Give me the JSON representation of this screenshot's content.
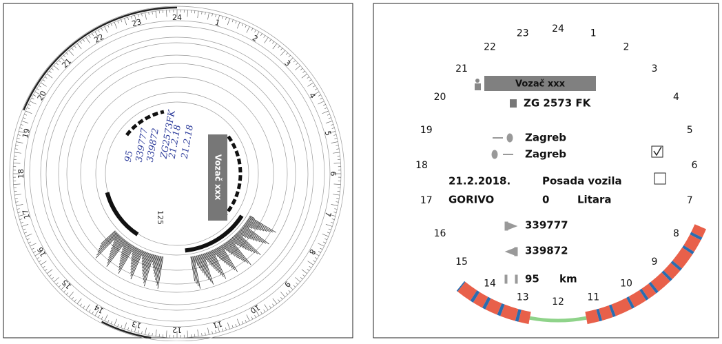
{
  "left_disk": {
    "hours": [
      "1",
      "2",
      "3",
      "4",
      "5",
      "6",
      "7",
      "8",
      "9",
      "10",
      "11",
      "12",
      "13",
      "14",
      "15",
      "16",
      "17",
      "18",
      "19",
      "20",
      "21",
      "22",
      "23",
      "24"
    ],
    "driver": "Vozač xxx",
    "speed_mark": "125",
    "notes": [
      "339872",
      "339777",
      "95",
      "21.2.18",
      "21.2.18",
      "ZG2573FK"
    ]
  },
  "right_clock": {
    "hours": [
      "1",
      "2",
      "3",
      "4",
      "5",
      "6",
      "7",
      "8",
      "9",
      "10",
      "11",
      "12",
      "13",
      "14",
      "15",
      "16",
      "17",
      "18",
      "19",
      "20",
      "21",
      "22",
      "23",
      "24"
    ],
    "driver": "Vozač xxx",
    "plate": "ZG 2573 FK",
    "start_place": "Zagreb",
    "end_place": "Zagreb",
    "date": "21.2.2018.",
    "crew_label": "Posada vozila",
    "fuel_label": "GORIVO",
    "fuel_value": "0",
    "fuel_unit": "Litara",
    "odometer_start": "339777",
    "odometer_end": "339872",
    "distance": "95",
    "distance_unit": "km"
  }
}
